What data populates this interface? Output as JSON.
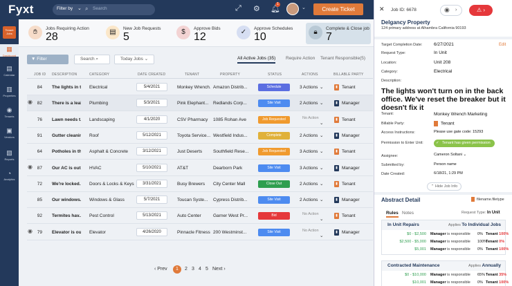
{
  "app": {
    "logo": "Fyxt",
    "filter_label": "Filter by",
    "search_placeholder": "Search",
    "bell_count": "1",
    "create_ticket": "Create Ticket"
  },
  "sidenav": {
    "tenant_jobs": "Tenant Jobs",
    "items": [
      {
        "label": "Dashboard",
        "icon": "dashboard-icon"
      },
      {
        "label": "Calendar",
        "icon": "calendar-icon"
      },
      {
        "label": "Properties",
        "icon": "building-icon"
      },
      {
        "label": "Tenants",
        "icon": "people-icon"
      },
      {
        "label": "Vendors",
        "icon": "truck-icon"
      },
      {
        "label": "Reports",
        "icon": "report-icon"
      },
      {
        "label": "Analytics",
        "icon": "analytics-icon"
      }
    ]
  },
  "stats": [
    {
      "label": "Jobs Requiring Action",
      "value": "28",
      "color": "#f6dcc9",
      "icon": "hand-icon"
    },
    {
      "label": "New Job Requests",
      "value": "5",
      "color": "#fbe7c9",
      "icon": "document-icon"
    },
    {
      "label": "Approve Bids",
      "value": "12",
      "color": "#f3d3d3",
      "icon": "dollar-icon"
    },
    {
      "label": "Approve Schedules",
      "value": "10",
      "color": "#d6def2",
      "icon": "calendar-check-icon"
    },
    {
      "label": "Complete & Close job",
      "value": "7",
      "color": "#b9c9d5",
      "icon": "lock-icon"
    }
  ],
  "toolbar": {
    "filter": "Filter",
    "search": "Search",
    "today": "Today Jobs",
    "tabs": [
      "All Active Jobs (35)",
      "Require Action",
      "Tenant Responsible(5)"
    ]
  },
  "table": {
    "headers": [
      "JOB ID",
      "DESCRIPTION",
      "CATEGORY",
      "DATE CREATED",
      "TENANT",
      "PROPERTY",
      "STATUS",
      "ACTIONS",
      "BILLABLE PARTY"
    ],
    "rows": [
      {
        "id": "84",
        "desc": "The lights in the...",
        "category": "Electrical",
        "date": "5/4/2021",
        "tenant": "Monkey Wrench...",
        "property": "Amazon Distrib...",
        "status": "Schedule",
        "status_color": "#5b6ee1",
        "actions": "3 Actions",
        "party": "Tenant",
        "avatar": false
      },
      {
        "id": "82",
        "desc": "There is a leak...",
        "category": "Plumbing",
        "date": "5/3/2021",
        "tenant": "Pink Elephant...",
        "property": "Redlands Corp...",
        "status": "Site Visit",
        "status_color": "#4d8bf0",
        "actions": "2 Actions",
        "party": "Manager",
        "avatar": true
      },
      {
        "id": "76",
        "desc": "Lawn needs t...",
        "category": "Landscaping",
        "date": "4/1/2020",
        "tenant": "CSV Pharmacy",
        "property": "1085 Rohan Ave",
        "status": "Job Requested",
        "status_color": "#f09a2e",
        "actions": "No Action",
        "party": "Tenant",
        "avatar": false
      },
      {
        "id": "91",
        "desc": "Gutter cleaning...",
        "category": "Roof",
        "date": "5/12/2021",
        "tenant": "Toyota Service...",
        "property": "Westfield Indus...",
        "status": "Complete",
        "status_color": "#e0b13a",
        "actions": "2 Actions",
        "party": "Manager",
        "avatar": false
      },
      {
        "id": "64",
        "desc": "Potholes in th...",
        "category": "Asphalt & Concrete",
        "date": "3/12/2021",
        "tenant": "Just Deserts",
        "property": "Southfield Rese...",
        "status": "Job Requested",
        "status_color": "#f09a2e",
        "actions": "3 Actions",
        "party": "Tenant",
        "avatar": false
      },
      {
        "id": "87",
        "desc": "Our AC is out...",
        "category": "HVAC",
        "date": "5/10/2021",
        "tenant": "AT&T",
        "property": "Dearborn Park",
        "status": "Site Visit",
        "status_color": "#4d8bf0",
        "actions": "3 Actions",
        "party": "Manager",
        "avatar": true
      },
      {
        "id": "72",
        "desc": "We're locked...",
        "category": "Doors & Locks & Keys",
        "date": "3/31/2021",
        "tenant": "Busy Brewers",
        "property": "City Center Mall",
        "status": "Close Out",
        "status_color": "#2e9e4f",
        "actions": "2 Actions",
        "party": "Tenant",
        "avatar": false
      },
      {
        "id": "85",
        "desc": "Our windows...",
        "category": "Windows & Glass",
        "date": "5/7/2021",
        "tenant": "Toucan Syste...",
        "property": "Cypress Distrib...",
        "status": "Site Visit",
        "status_color": "#4d8bf0",
        "actions": "2 Actions",
        "party": "Manager",
        "avatar": false
      },
      {
        "id": "92",
        "desc": "Termites hav...",
        "category": "Pest Control",
        "date": "5/13/2021",
        "tenant": "Auto Center",
        "property": "Garner West Pr...",
        "status": "Bid",
        "status_color": "#e5383b",
        "actions": "No Action",
        "party": "Tenant",
        "avatar": false
      },
      {
        "id": "79",
        "desc": "Elevator is ou...",
        "category": "Elevator",
        "date": "4/26/2020",
        "tenant": "Pinnacle Fitness",
        "property": "200 Westminst...",
        "status": "Site Visit",
        "status_color": "#4d8bf0",
        "actions": "No Action",
        "party": "Manager",
        "avatar": true
      }
    ]
  },
  "pager": {
    "prev": "Prev",
    "pages": [
      "1",
      "2",
      "3",
      "4",
      "5"
    ],
    "next": "Next"
  },
  "panel": {
    "job_id": "Job ID: 6678",
    "property": "Delgancy Property",
    "address": "124 primary address at Alhambra California 90193",
    "edit": "Edit",
    "fields": [
      {
        "label": "Target Completion Date:",
        "value": "6/27/2021"
      },
      {
        "label": "Request Type:",
        "value": "In Unit"
      },
      {
        "label": "Location:",
        "value": "Unit 208"
      },
      {
        "label": "Category:",
        "value": "Electrical"
      },
      {
        "label": "Description:",
        "value": ""
      }
    ],
    "description": "The lights won't turn on in the back office. We've reset the breaker but it doesn't fix it",
    "fields2": [
      {
        "label": "Tenant:",
        "value": "Monkey Wrench Marketing"
      },
      {
        "label": "Billable Party:",
        "value": "Tenant"
      },
      {
        "label": "Access Instructions:",
        "value": "Please use gate code: 15293"
      },
      {
        "label": "Permission to Enter Unit:",
        "value": ""
      }
    ],
    "permission": "Tenant has given permission",
    "fields3": [
      {
        "label": "Assignee:",
        "value": "Cameron Soltani"
      },
      {
        "label": "Submitted by:",
        "value": "Person name"
      },
      {
        "label": "Date Created:",
        "value": "6/18/21, 1:29 PM"
      }
    ],
    "hide_info": "Hide Job Info",
    "abstract_title": "Abstract Detail",
    "abstract_file": "filename.filetype",
    "tabs": [
      "Rules",
      "Notes"
    ],
    "request_type_label": "Request Type:",
    "request_type_value": "In Unit",
    "rules": [
      {
        "name": "In Unit Repairs",
        "applies_label": "Applies",
        "applies_value": "To Individual Jobs",
        "lines": [
          {
            "range": "$0 - $2,500",
            "mgr_pct": "0%",
            "ten_pct": "100%"
          },
          {
            "range": "$2,500 - $5,000",
            "mgr_pct": "100%",
            "ten_pct": "0%"
          },
          {
            "range": "$5,001",
            "mgr_pct": "0%",
            "ten_pct": "100%"
          }
        ]
      },
      {
        "name": "Contracted Maintenance",
        "applies_label": "Applies",
        "applies_value": "Annually",
        "lines": [
          {
            "range": "$0 - $10,000",
            "mgr_pct": "65%",
            "ten_pct": "35%"
          },
          {
            "range": "$10,001",
            "mgr_pct": "0%",
            "ten_pct": "100%"
          }
        ]
      }
    ],
    "manager_word": "Manager",
    "responsible_text": "is responsible",
    "tenant_word": "Tenant"
  }
}
